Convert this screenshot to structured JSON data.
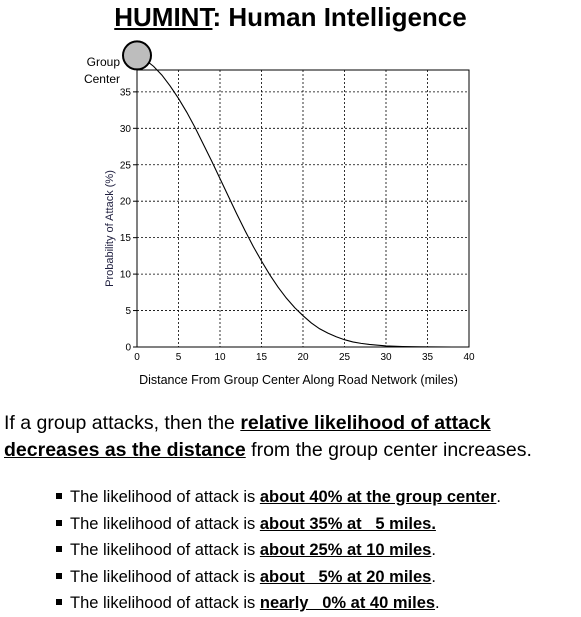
{
  "header": {
    "title_underlined": "HUMINT",
    "title_rest": ": Human Intelligence"
  },
  "annotation": {
    "line1": "Group",
    "line2": "Center"
  },
  "summary": {
    "prefix": "If a group attacks, then the ",
    "emphasis": "relative likelihood of attack decreases as the distance",
    "suffix": " from the group center increases."
  },
  "bullets": [
    {
      "text": "The likelihood of attack is ",
      "highlight": "about 40% at the group center",
      "end": "."
    },
    {
      "text": "The likelihood of attack is ",
      "highlight": "about 35% at   5 miles.",
      "end": ""
    },
    {
      "text": "The likelihood of attack is ",
      "highlight": "about 25% at 10 miles",
      "end": "."
    },
    {
      "text": "The likelihood of attack is ",
      "highlight": "about   5% at 20 miles",
      "end": "."
    },
    {
      "text": "The likelihood of attack is ",
      "highlight": "nearly   0% at 40 miles",
      "end": "."
    }
  ],
  "colors": {
    "curve": "#000000",
    "grid": "#000000",
    "marker_fill": "#bdbdbd",
    "marker_stroke": "#000000",
    "ylabel": "#1f1f3f"
  },
  "chart_data": {
    "type": "line",
    "xlabel": "Distance From Group Center Along Road Network (miles)",
    "ylabel": "Probability of Attack (%)",
    "xlim": [
      0,
      40
    ],
    "ylim": [
      0,
      38
    ],
    "xticks": [
      0,
      5,
      10,
      15,
      20,
      25,
      30,
      35,
      40
    ],
    "yticks": [
      0,
      5,
      10,
      15,
      20,
      25,
      30,
      35
    ],
    "grid": true,
    "series": [
      {
        "x": [
          0,
          1,
          2,
          3,
          4,
          5,
          6,
          7,
          8,
          9,
          10,
          11,
          12,
          13,
          14,
          15,
          16,
          17,
          18,
          19,
          20,
          21,
          22,
          23,
          24,
          25,
          26,
          27,
          28,
          29,
          30,
          32,
          34,
          36,
          38,
          40
        ],
        "values": [
          40,
          39.4,
          38.5,
          37.3,
          35.8,
          34.1,
          32.2,
          30.1,
          27.8,
          25.5,
          23.1,
          20.7,
          18.3,
          16.0,
          13.8,
          11.8,
          9.9,
          8.2,
          6.7,
          5.4,
          4.3,
          3.3,
          2.5,
          1.9,
          1.4,
          1.0,
          0.7,
          0.5,
          0.35,
          0.25,
          0.15,
          0.07,
          0.03,
          0.01,
          0.0,
          0.0
        ]
      }
    ],
    "marker": {
      "x": 0,
      "y": 40
    }
  }
}
